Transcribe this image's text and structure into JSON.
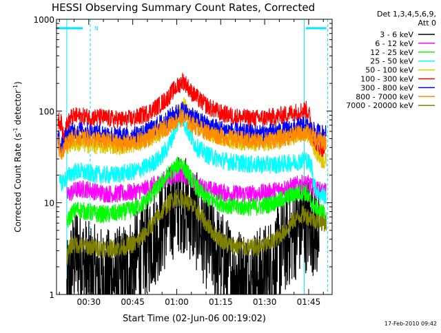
{
  "chart_data": {
    "type": "line",
    "title": "HESSI Observing Summary Count Rates, Corrected",
    "xlabel": "Start Time (02-Jun-06 00:19:02)",
    "ylabel": "Corrected Count Rate (s⁻¹ detector⁻¹)",
    "ylabel_parts": [
      "Corrected Count Rate (s",
      "-1",
      " detector",
      "-1",
      ")"
    ],
    "x_range_minutes": [
      0,
      94
    ],
    "x_ticks": [
      {
        "value": 11,
        "label": "00:30"
      },
      {
        "value": 26,
        "label": "00:45"
      },
      {
        "value": 41,
        "label": "01:00"
      },
      {
        "value": 56,
        "label": "01:15"
      },
      {
        "value": 71,
        "label": "01:30"
      },
      {
        "value": 86,
        "label": "01:45"
      }
    ],
    "y_scale": "log",
    "ylim": [
      1,
      1000
    ],
    "y_ticks": [
      {
        "value": 1,
        "label": "1"
      },
      {
        "value": 10,
        "label": "10"
      },
      {
        "value": 100,
        "label": "100"
      },
      {
        "value": 1000,
        "label": "1000"
      }
    ],
    "legend": {
      "title_lines": [
        "Det 1,3,4,5,6,9,",
        "Att 0"
      ],
      "placement": "outside right"
    },
    "night_marker_label": "N",
    "night_vertical_lines_minutes": [
      3.5,
      11.5,
      84.5,
      92.5
    ],
    "night_bars": [
      [
        0,
        9
      ],
      [
        85,
        92
      ]
    ],
    "series": [
      {
        "name": "3 - 6 keV",
        "color": "#000000",
        "points": [
          [
            3.5,
            1
          ],
          [
            5,
            2
          ],
          [
            7,
            3
          ],
          [
            9,
            2.2
          ],
          [
            11,
            1.8
          ],
          [
            14,
            1.6
          ],
          [
            18,
            1.5
          ],
          [
            22,
            1.6
          ],
          [
            26,
            2.2
          ],
          [
            30,
            3
          ],
          [
            34,
            4.5
          ],
          [
            38,
            7
          ],
          [
            41,
            9.5
          ],
          [
            43,
            10
          ],
          [
            45,
            8.5
          ],
          [
            48,
            6
          ],
          [
            51,
            4
          ],
          [
            54,
            3
          ],
          [
            58,
            2
          ],
          [
            62,
            1.6
          ],
          [
            66,
            1.5
          ],
          [
            70,
            1.6
          ],
          [
            73,
            2
          ],
          [
            76,
            2.8
          ],
          [
            79,
            4
          ],
          [
            82,
            5.2
          ],
          [
            84,
            6
          ],
          [
            86,
            6
          ],
          [
            88,
            5.5
          ],
          [
            89.5,
            5
          ]
        ]
      },
      {
        "name": "6 - 12 keV",
        "color": "#ff00ff",
        "points": [
          [
            3.5,
            12
          ],
          [
            6,
            13.5
          ],
          [
            8,
            14
          ],
          [
            11,
            14
          ],
          [
            14,
            13
          ],
          [
            18,
            12.5
          ],
          [
            22,
            12.5
          ],
          [
            26,
            13
          ],
          [
            30,
            14
          ],
          [
            34,
            16
          ],
          [
            38,
            18.5
          ],
          [
            41,
            20
          ],
          [
            42.5,
            21
          ],
          [
            44,
            19.5
          ],
          [
            46,
            17.5
          ],
          [
            49,
            15
          ],
          [
            52,
            14
          ],
          [
            56,
            13
          ],
          [
            60,
            12.5
          ],
          [
            64,
            12.5
          ],
          [
            68,
            12.5
          ],
          [
            72,
            13
          ],
          [
            76,
            14
          ],
          [
            80,
            15
          ],
          [
            83,
            16
          ],
          [
            86,
            16
          ],
          [
            88,
            14
          ],
          [
            90,
            13.5
          ],
          [
            92,
            13
          ]
        ]
      },
      {
        "name": "12 - 25 keV",
        "color": "#00ff00",
        "points": [
          [
            3.5,
            6
          ],
          [
            5,
            7.5
          ],
          [
            7,
            8.5
          ],
          [
            10,
            8
          ],
          [
            14,
            7.5
          ],
          [
            18,
            7.5
          ],
          [
            22,
            7.8
          ],
          [
            26,
            8.5
          ],
          [
            30,
            10
          ],
          [
            34,
            14
          ],
          [
            38,
            20
          ],
          [
            41,
            25
          ],
          [
            42.5,
            27
          ],
          [
            44,
            23
          ],
          [
            46,
            18
          ],
          [
            49,
            13
          ],
          [
            52,
            11
          ],
          [
            56,
            10
          ],
          [
            60,
            9
          ],
          [
            64,
            9
          ],
          [
            68,
            9
          ],
          [
            72,
            9.5
          ],
          [
            76,
            10.5
          ],
          [
            80,
            12
          ],
          [
            83,
            13
          ],
          [
            85,
            13
          ],
          [
            86,
            11
          ],
          [
            88,
            9
          ],
          [
            90,
            8
          ],
          [
            92,
            7.5
          ]
        ]
      },
      {
        "name": "25 - 50 keV",
        "color": "#00ffff",
        "points": [
          [
            1,
            16
          ],
          [
            3,
            18
          ],
          [
            5,
            21
          ],
          [
            7,
            22
          ],
          [
            11,
            21
          ],
          [
            15,
            20
          ],
          [
            19,
            20
          ],
          [
            23,
            21
          ],
          [
            27,
            22
          ],
          [
            31,
            25
          ],
          [
            35,
            30
          ],
          [
            38,
            40
          ],
          [
            40,
            58
          ],
          [
            42,
            82
          ],
          [
            43,
            86
          ],
          [
            44,
            70
          ],
          [
            46,
            50
          ],
          [
            48,
            40
          ],
          [
            51,
            34
          ],
          [
            55,
            30
          ],
          [
            59,
            28
          ],
          [
            63,
            27
          ],
          [
            67,
            26
          ],
          [
            71,
            26
          ],
          [
            75,
            26
          ],
          [
            79,
            27
          ],
          [
            82,
            28
          ],
          [
            85,
            30
          ],
          [
            87,
            25
          ],
          [
            88,
            15
          ],
          [
            90,
            12
          ],
          [
            92,
            12
          ]
        ]
      },
      {
        "name": "50 - 100 keV",
        "color": "#ddc800",
        "points": [
          [
            3.5,
            40
          ],
          [
            5,
            45
          ],
          [
            7,
            45
          ],
          [
            11,
            43
          ],
          [
            15,
            42
          ],
          [
            19,
            42
          ],
          [
            23,
            42
          ],
          [
            27,
            44
          ],
          [
            31,
            49
          ],
          [
            35,
            57
          ],
          [
            38,
            67
          ],
          [
            40,
            78
          ],
          [
            42,
            100
          ],
          [
            43,
            120
          ],
          [
            44,
            110
          ],
          [
            46,
            85
          ],
          [
            49,
            70
          ],
          [
            52,
            58
          ],
          [
            56,
            52
          ],
          [
            60,
            48
          ],
          [
            64,
            46
          ],
          [
            68,
            45
          ],
          [
            72,
            46
          ],
          [
            76,
            48
          ],
          [
            80,
            52
          ],
          [
            83,
            56
          ],
          [
            85,
            58
          ],
          [
            87,
            50
          ],
          [
            88,
            40
          ],
          [
            90,
            30
          ],
          [
            92,
            28
          ]
        ]
      },
      {
        "name": "100 - 300 keV",
        "color": "#ff0000",
        "points": [
          [
            0.5,
            80
          ],
          [
            1.5,
            75
          ],
          [
            2.5,
            55
          ],
          [
            3.5,
            70
          ],
          [
            5,
            85
          ],
          [
            7,
            88
          ],
          [
            11,
            86
          ],
          [
            15,
            85
          ],
          [
            19,
            82
          ],
          [
            23,
            80
          ],
          [
            27,
            84
          ],
          [
            31,
            95
          ],
          [
            35,
            115
          ],
          [
            38,
            140
          ],
          [
            40,
            170
          ],
          [
            42,
            195
          ],
          [
            43,
            215
          ],
          [
            44,
            200
          ],
          [
            46,
            160
          ],
          [
            49,
            130
          ],
          [
            52,
            110
          ],
          [
            56,
            95
          ],
          [
            60,
            88
          ],
          [
            64,
            84
          ],
          [
            68,
            83
          ],
          [
            72,
            85
          ],
          [
            76,
            88
          ],
          [
            80,
            95
          ],
          [
            83,
            100
          ],
          [
            85,
            104
          ],
          [
            86,
            95
          ],
          [
            87,
            70
          ],
          [
            88,
            48
          ],
          [
            90,
            40
          ],
          [
            92,
            38
          ]
        ]
      },
      {
        "name": "300 - 800 keV",
        "color": "#0000ff",
        "points": [
          [
            0.5,
            55
          ],
          [
            1.5,
            40
          ],
          [
            2.5,
            45
          ],
          [
            3.5,
            55
          ],
          [
            5,
            60
          ],
          [
            7,
            62
          ],
          [
            11,
            60
          ],
          [
            15,
            58
          ],
          [
            19,
            55
          ],
          [
            23,
            53
          ],
          [
            27,
            55
          ],
          [
            31,
            60
          ],
          [
            35,
            72
          ],
          [
            38,
            82
          ],
          [
            40,
            92
          ],
          [
            42,
            100
          ],
          [
            43,
            103
          ],
          [
            44,
            98
          ],
          [
            46,
            88
          ],
          [
            49,
            78
          ],
          [
            52,
            70
          ],
          [
            56,
            64
          ],
          [
            60,
            60
          ],
          [
            64,
            58
          ],
          [
            68,
            57
          ],
          [
            72,
            58
          ],
          [
            76,
            60
          ],
          [
            80,
            64
          ],
          [
            83,
            68
          ],
          [
            85,
            70
          ],
          [
            86,
            66
          ],
          [
            87,
            62
          ],
          [
            88,
            60
          ],
          [
            90,
            58
          ],
          [
            92,
            56
          ]
        ]
      },
      {
        "name": "800 - 7000 keV",
        "color": "#ff8c00",
        "points": [
          [
            0.5,
            45
          ],
          [
            1.5,
            35
          ],
          [
            2.5,
            40
          ],
          [
            3.5,
            45
          ],
          [
            5,
            50
          ],
          [
            7,
            52
          ],
          [
            11,
            50
          ],
          [
            15,
            48
          ],
          [
            19,
            46
          ],
          [
            23,
            44
          ],
          [
            27,
            46
          ],
          [
            31,
            51
          ],
          [
            35,
            60
          ],
          [
            38,
            68
          ],
          [
            40,
            76
          ],
          [
            42,
            82
          ],
          [
            43,
            84
          ],
          [
            44,
            80
          ],
          [
            46,
            72
          ],
          [
            49,
            64
          ],
          [
            52,
            58
          ],
          [
            56,
            53
          ],
          [
            60,
            50
          ],
          [
            64,
            48
          ],
          [
            68,
            47
          ],
          [
            72,
            48
          ],
          [
            76,
            50
          ],
          [
            80,
            54
          ],
          [
            83,
            57
          ],
          [
            85,
            59
          ],
          [
            86,
            56
          ],
          [
            87,
            52
          ],
          [
            88,
            50
          ],
          [
            90,
            48
          ],
          [
            92,
            46
          ]
        ]
      },
      {
        "name": "7000 - 20000 keV",
        "color": "#808000",
        "points": [
          [
            3.5,
            2.5
          ],
          [
            5,
            3.5
          ],
          [
            7,
            3.5
          ],
          [
            11,
            3.3
          ],
          [
            15,
            3.2
          ],
          [
            19,
            3.2
          ],
          [
            23,
            3.3
          ],
          [
            27,
            3.6
          ],
          [
            30,
            4.5
          ],
          [
            33,
            6
          ],
          [
            36,
            8
          ],
          [
            39,
            10.5
          ],
          [
            41,
            11.5
          ],
          [
            43,
            11
          ],
          [
            45,
            10
          ],
          [
            48,
            8
          ],
          [
            51,
            6
          ],
          [
            54,
            4.5
          ],
          [
            58,
            3.6
          ],
          [
            62,
            3.3
          ],
          [
            66,
            3.2
          ],
          [
            70,
            3.3
          ],
          [
            74,
            3.8
          ],
          [
            78,
            5
          ],
          [
            81,
            6.5
          ],
          [
            84,
            7.5
          ],
          [
            86,
            7
          ],
          [
            88,
            6.5
          ],
          [
            90,
            6.2
          ],
          [
            92,
            6
          ]
        ]
      }
    ]
  },
  "footer": {
    "timestamp": "17-Feb-2010 09:42"
  }
}
